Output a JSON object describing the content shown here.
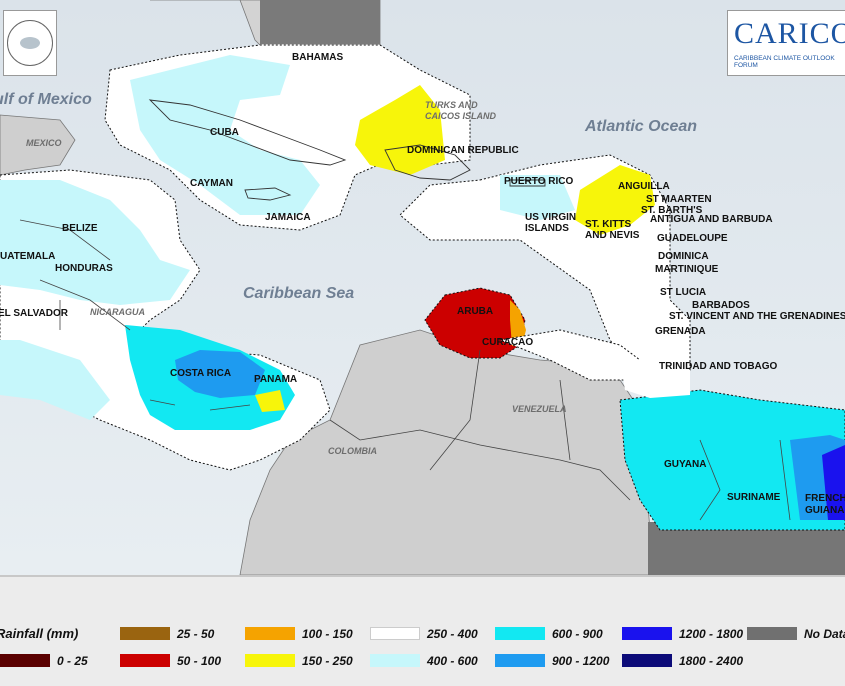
{
  "map": {
    "water_labels": {
      "gulf": "ulf of Mexico",
      "atlantic": "Atlantic Ocean",
      "caribbean": "Caribbean Sea"
    },
    "land_labels": {
      "mexico": "MEXICO",
      "nicaragua": "NICARAGUA",
      "venezuela": "VENEZUELA",
      "colombia": "COLOMBIA",
      "turks": "TURKS AND CAICOS ISLAND"
    },
    "places": {
      "bahamas": "BAHAMAS",
      "cuba": "CUBA",
      "cayman": "CAYMAN",
      "jamaica": "JAMAICA",
      "dominican_republic": "DOMINICAN REPUBLIC",
      "puerto_rico": "PUERTO RICO",
      "anguilla": "ANGUILLA",
      "st_maarten": "ST MAARTEN",
      "st_barths": "ST. BARTH'S",
      "antigua": "ANTIGUA AND BARBUDA",
      "us_virgin": "US VIRGIN ISLANDS",
      "st_kitts": "ST. KITTS AND NEVIS",
      "guadeloupe": "GUADELOUPE",
      "dominica": "DOMINICA",
      "martinique": "MARTINIQUE",
      "st_lucia": "ST LUCIA",
      "barbados": "BARBADOS",
      "st_vincent": "ST. VINCENT AND THE GRENADINES",
      "grenada": "GRENADA",
      "trinidad": "TRINIDAD AND TOBAGO",
      "belize": "BELIZE",
      "guatemala": "UATEMALA",
      "honduras": "HONDURAS",
      "el_salvador": "EL SALVADOR",
      "costa_rica": "COSTA RICA",
      "panama": "PANAMA",
      "aruba": "ARUBA",
      "curacao": "CURACAO",
      "guyana": "GUYANA",
      "suriname": "SURINAME",
      "french_guiana": "FRENCH GUIANA"
    }
  },
  "logos": {
    "left_icon": "cimh-seal-logo",
    "right_text": "CARICOF",
    "right_sub": "CARIBBEAN CLIMATE OUTLOOK FORUM"
  },
  "legend": {
    "title": "Rainfall (mm)",
    "items": [
      {
        "label": "0 - 25",
        "color": "#5a0000"
      },
      {
        "label": "25 - 50",
        "color": "#9a6410"
      },
      {
        "label": "50 - 100",
        "color": "#cc0000"
      },
      {
        "label": "100 - 150",
        "color": "#f5a300"
      },
      {
        "label": "150 - 250",
        "color": "#f7f50a"
      },
      {
        "label": "250 - 400",
        "color": "#ffffff"
      },
      {
        "label": "400 - 600",
        "color": "#c6f7fb"
      },
      {
        "label": "600 - 900",
        "color": "#12e8f2"
      },
      {
        "label": "900 - 1200",
        "color": "#1e9bf0"
      },
      {
        "label": "1200 - 1800",
        "color": "#1a12ee"
      },
      {
        "label": "1800 - 2400",
        "color": "#0c0b78"
      },
      {
        "label": "No Data",
        "color": "#707070"
      }
    ]
  }
}
